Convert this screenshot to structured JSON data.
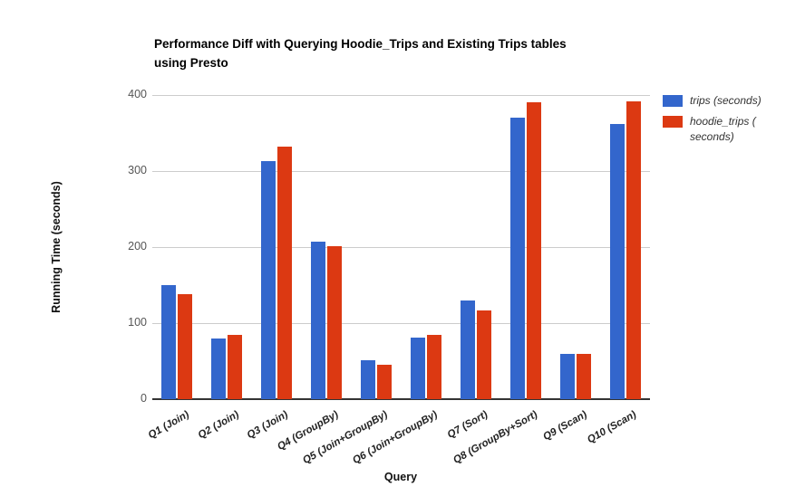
{
  "chart_data": {
    "type": "bar",
    "title": "Performance Diff with Querying Hoodie_Trips and Existing Trips tables using Presto",
    "title_lines": [
      "Performance Diff with Querying Hoodie_Trips and Existing Trips tables",
      "using Presto"
    ],
    "xlabel": "Query",
    "ylabel": "Running Time (seconds)",
    "ylim": [
      0,
      400
    ],
    "yticks": [
      0,
      100,
      200,
      300,
      400
    ],
    "grid": true,
    "legend_position": "right",
    "categories": [
      "Q1 (Join)",
      "Q2 (Join)",
      "Q3 (Join)",
      "Q4 (GroupBy)",
      "Q5 (Join+GroupBy)",
      "Q6 (Join+GroupBy)",
      "Q7 (Sort)",
      "Q8 (GroupBy+Sort)",
      "Q9 (Scan)",
      "Q10 (Scan)"
    ],
    "series": [
      {
        "name": "trips (seconds)",
        "legend_lines": [
          "trips (seconds)"
        ],
        "color": "#3366CC",
        "values": [
          150,
          80,
          313,
          207,
          51,
          81,
          130,
          370,
          60,
          362
        ]
      },
      {
        "name": "hoodie_trips (seconds)",
        "legend_lines": [
          "hoodie_trips (",
          "seconds)"
        ],
        "color": "#DC3912",
        "values": [
          138,
          84,
          332,
          201,
          45,
          85,
          117,
          390,
          59,
          392
        ]
      }
    ],
    "colors": {
      "gridline": "#CCCCCC",
      "baseline": "#333333",
      "y_tick_text": "#555555",
      "x_tick_text": "#222222",
      "title_text": "#000000"
    }
  }
}
